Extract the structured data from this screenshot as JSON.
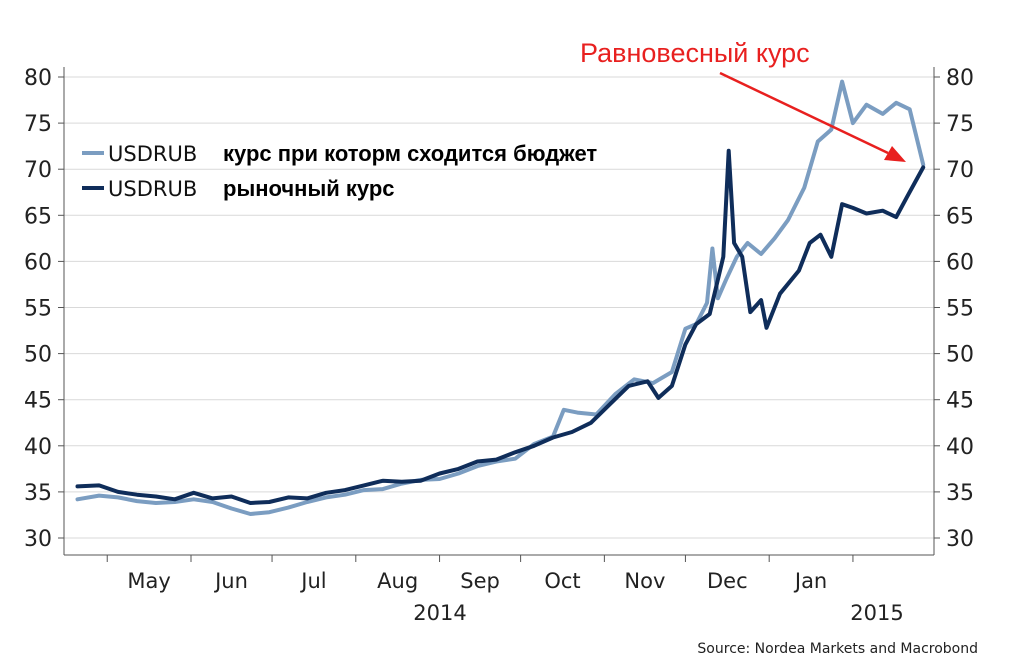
{
  "chart_data": {
    "type": "line",
    "ylim": [
      30,
      80
    ],
    "yticks": [
      30,
      35,
      40,
      45,
      50,
      55,
      60,
      65,
      70,
      75,
      80
    ],
    "xticks": [
      "May",
      "Jun",
      "Jul",
      "Aug",
      "Sep",
      "Oct",
      "Nov",
      "Dec",
      "Jan"
    ],
    "years": [
      "2014",
      "2015"
    ],
    "grid": true,
    "legend_position": "top-left",
    "annotation": "Равновесный курс",
    "source": "Source: Nordea Markets and Macrobond",
    "series": [
      {
        "name": "USDRUB",
        "description": "курс при которм сходится бюджет",
        "color": "#7b9dc1",
        "points": [
          [
            "2014-04-20",
            34.2
          ],
          [
            "2014-04-28",
            34.6
          ],
          [
            "2014-05-05",
            34.4
          ],
          [
            "2014-05-12",
            34.0
          ],
          [
            "2014-05-19",
            33.8
          ],
          [
            "2014-05-26",
            33.9
          ],
          [
            "2014-06-02",
            34.2
          ],
          [
            "2014-06-09",
            33.9
          ],
          [
            "2014-06-16",
            33.2
          ],
          [
            "2014-06-23",
            32.6
          ],
          [
            "2014-06-30",
            32.8
          ],
          [
            "2014-07-07",
            33.3
          ],
          [
            "2014-07-14",
            33.9
          ],
          [
            "2014-07-21",
            34.4
          ],
          [
            "2014-07-28",
            34.7
          ],
          [
            "2014-08-04",
            35.2
          ],
          [
            "2014-08-11",
            35.3
          ],
          [
            "2014-08-18",
            35.9
          ],
          [
            "2014-08-25",
            36.3
          ],
          [
            "2014-09-01",
            36.4
          ],
          [
            "2014-09-08",
            37.0
          ],
          [
            "2014-09-15",
            37.8
          ],
          [
            "2014-09-22",
            38.3
          ],
          [
            "2014-09-29",
            38.6
          ],
          [
            "2014-10-06",
            40.2
          ],
          [
            "2014-10-13",
            41.0
          ],
          [
            "2014-10-17",
            43.9
          ],
          [
            "2014-10-22",
            43.6
          ],
          [
            "2014-10-29",
            43.4
          ],
          [
            "2014-11-05",
            45.6
          ],
          [
            "2014-11-12",
            47.2
          ],
          [
            "2014-11-19",
            46.8
          ],
          [
            "2014-11-26",
            48.0
          ],
          [
            "2014-12-01",
            52.7
          ],
          [
            "2014-12-05",
            53.2
          ],
          [
            "2014-12-09",
            55.5
          ],
          [
            "2014-12-11",
            61.4
          ],
          [
            "2014-12-13",
            56.0
          ],
          [
            "2014-12-16",
            58.0
          ],
          [
            "2014-12-20",
            60.5
          ],
          [
            "2014-12-24",
            62.0
          ],
          [
            "2014-12-29",
            60.8
          ],
          [
            "2015-01-03",
            62.5
          ],
          [
            "2015-01-08",
            64.5
          ],
          [
            "2015-01-14",
            68.0
          ],
          [
            "2015-01-19",
            73.0
          ],
          [
            "2015-01-24",
            74.3
          ],
          [
            "2015-01-28",
            79.5
          ],
          [
            "2015-02-01",
            75.0
          ],
          [
            "2015-02-06",
            77.0
          ],
          [
            "2015-02-12",
            76.0
          ],
          [
            "2015-02-17",
            77.2
          ],
          [
            "2015-02-22",
            76.5
          ],
          [
            "2015-02-27",
            70.5
          ]
        ]
      },
      {
        "name": "USDRUB",
        "description": "рыночный курс",
        "color": "#0f2d5a",
        "points": [
          [
            "2014-04-20",
            35.6
          ],
          [
            "2014-04-28",
            35.7
          ],
          [
            "2014-05-05",
            35.0
          ],
          [
            "2014-05-12",
            34.7
          ],
          [
            "2014-05-19",
            34.5
          ],
          [
            "2014-05-26",
            34.2
          ],
          [
            "2014-06-02",
            34.9
          ],
          [
            "2014-06-09",
            34.3
          ],
          [
            "2014-06-16",
            34.5
          ],
          [
            "2014-06-23",
            33.8
          ],
          [
            "2014-06-30",
            33.9
          ],
          [
            "2014-07-07",
            34.4
          ],
          [
            "2014-07-14",
            34.3
          ],
          [
            "2014-07-21",
            34.9
          ],
          [
            "2014-07-28",
            35.2
          ],
          [
            "2014-08-04",
            35.7
          ],
          [
            "2014-08-11",
            36.2
          ],
          [
            "2014-08-18",
            36.1
          ],
          [
            "2014-08-25",
            36.2
          ],
          [
            "2014-09-01",
            37.0
          ],
          [
            "2014-09-08",
            37.5
          ],
          [
            "2014-09-15",
            38.3
          ],
          [
            "2014-09-22",
            38.5
          ],
          [
            "2014-09-29",
            39.3
          ],
          [
            "2014-10-06",
            40.0
          ],
          [
            "2014-10-13",
            40.9
          ],
          [
            "2014-10-20",
            41.5
          ],
          [
            "2014-10-27",
            42.5
          ],
          [
            "2014-11-03",
            44.5
          ],
          [
            "2014-11-10",
            46.5
          ],
          [
            "2014-11-17",
            47.0
          ],
          [
            "2014-11-21",
            45.2
          ],
          [
            "2014-11-26",
            46.5
          ],
          [
            "2014-12-01",
            51.0
          ],
          [
            "2014-12-05",
            53.2
          ],
          [
            "2014-12-10",
            54.3
          ],
          [
            "2014-12-15",
            60.5
          ],
          [
            "2014-12-17",
            72.0
          ],
          [
            "2014-12-19",
            62.0
          ],
          [
            "2014-12-22",
            60.5
          ],
          [
            "2014-12-25",
            54.5
          ],
          [
            "2014-12-29",
            55.8
          ],
          [
            "2014-12-31",
            52.8
          ],
          [
            "2015-01-05",
            56.5
          ],
          [
            "2015-01-12",
            59.0
          ],
          [
            "2015-01-16",
            62.0
          ],
          [
            "2015-01-20",
            62.9
          ],
          [
            "2015-01-24",
            60.5
          ],
          [
            "2015-01-28",
            66.2
          ],
          [
            "2015-02-01",
            65.8
          ],
          [
            "2015-02-06",
            65.2
          ],
          [
            "2015-02-12",
            65.5
          ],
          [
            "2015-02-17",
            64.8
          ],
          [
            "2015-02-21",
            67.0
          ],
          [
            "2015-02-27",
            70.2
          ]
        ]
      }
    ]
  }
}
